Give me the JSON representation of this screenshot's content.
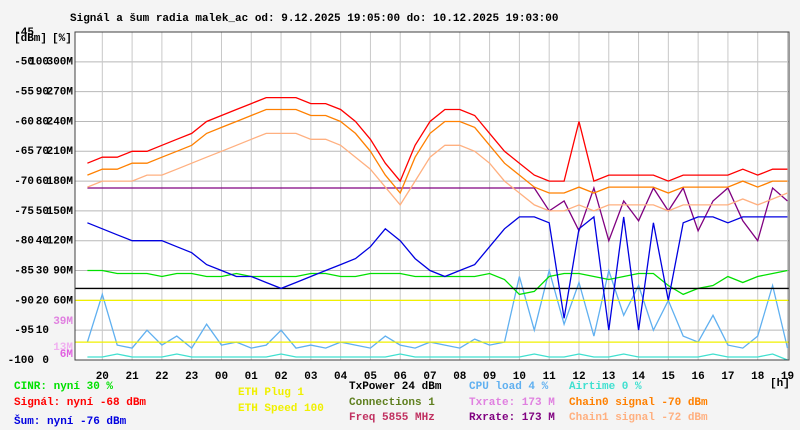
{
  "chart_data": {
    "type": "line",
    "title": "Signál a šum radia malek_ac od: 9.12.2025 19:05:00 do: 10.12.2025 19:03:00",
    "y_label": "[dBm]",
    "y2_label": "[%]",
    "x_label": "[h]",
    "x": [
      19.5,
      20,
      20.5,
      21,
      21.5,
      22,
      22.5,
      23,
      23.5,
      24,
      24.5,
      25,
      25.5,
      26,
      26.5,
      27,
      27.5,
      28,
      28.5,
      29,
      29.5,
      30,
      30.5,
      31,
      31.5,
      32,
      32.5,
      33,
      33.5,
      34,
      34.5,
      35,
      35.5,
      36,
      36.5,
      37,
      37.5,
      38,
      38.5,
      39,
      39.5,
      40,
      40.5,
      41,
      41.5,
      42,
      42.5,
      43
    ],
    "xlim": [
      19.0833,
      43.05
    ],
    "xticks": [
      20,
      21,
      22,
      23,
      {
        "value": 24,
        "label": "00"
      },
      {
        "value": 25,
        "label": "01"
      },
      {
        "value": 26,
        "label": "02"
      },
      {
        "value": 27,
        "label": "03"
      },
      {
        "value": 28,
        "label": "04"
      },
      {
        "value": 29,
        "label": "05"
      },
      {
        "value": 30,
        "label": "06"
      },
      {
        "value": 31,
        "label": "07"
      },
      {
        "value": 32,
        "label": "08"
      },
      {
        "value": 33,
        "label": "09"
      },
      {
        "value": 34,
        "label": "10"
      },
      {
        "value": 35,
        "label": "11"
      },
      {
        "value": 36,
        "label": "12"
      },
      {
        "value": 37,
        "label": "13"
      },
      {
        "value": 38,
        "label": "14"
      },
      {
        "value": 39,
        "label": "15"
      },
      {
        "value": 40,
        "label": "16"
      },
      {
        "value": 41,
        "label": "17"
      },
      {
        "value": 42,
        "label": "18"
      },
      {
        "value": 43,
        "label": "19"
      }
    ],
    "ylim": [
      -100,
      -45
    ],
    "yticks": [
      -45,
      -50,
      -55,
      -60,
      -65,
      -70,
      -75,
      -80,
      -85,
      -90,
      -95,
      -100
    ],
    "y2lim": [
      0,
      110
    ],
    "y2ticks": [
      100,
      90,
      80,
      70,
      60,
      50,
      40,
      30,
      20,
      10,
      0
    ],
    "y3lim": [
      0,
      330
    ],
    "y3ticks": [
      {
        "value": 300,
        "label": "300M"
      },
      {
        "value": 270,
        "label": "270M"
      },
      {
        "value": 240,
        "label": "240M"
      },
      {
        "value": 210,
        "label": "210M"
      },
      {
        "value": 180,
        "label": "180M"
      },
      {
        "value": 150,
        "label": "150M"
      },
      {
        "value": 120,
        "label": "120M"
      },
      {
        "value": 90,
        "label": "90M"
      },
      {
        "value": 60,
        "label": "60M"
      }
    ],
    "rate_marks": [
      {
        "value": 39,
        "label": "39M",
        "color": "#e080e0"
      },
      {
        "value": 13,
        "label": "13M",
        "color": "#f0b0f0"
      },
      {
        "value": 6,
        "label": "6M",
        "color": "#e060e0"
      }
    ],
    "grid": true,
    "series": [
      {
        "name": "CINR: nyní 30 %",
        "color": "#00e000",
        "axis": "y2",
        "values": [
          30,
          30,
          29,
          29,
          29,
          28,
          29,
          29,
          28,
          28,
          29,
          28,
          28,
          28,
          28,
          29,
          29,
          28,
          28,
          29,
          29,
          29,
          28,
          28,
          28,
          28,
          28,
          29,
          27,
          22,
          23,
          28,
          29,
          29,
          28,
          27,
          28,
          29,
          29,
          25,
          22,
          24,
          25,
          28,
          26,
          28,
          29,
          30
        ]
      },
      {
        "name": "Signál: nyní -68 dBm",
        "color": "#ff0000",
        "axis": "y",
        "values": [
          -67,
          -66,
          -66,
          -65,
          -65,
          -64,
          -63,
          -62,
          -60,
          -59,
          -58,
          -57,
          -56,
          -56,
          -56,
          -57,
          -57,
          -58,
          -60,
          -63,
          -67,
          -70,
          -64,
          -60,
          -58,
          -58,
          -59,
          -62,
          -65,
          -67,
          -69,
          -70,
          -70,
          -60,
          -70,
          -69,
          -69,
          -69,
          -69,
          -70,
          -69,
          -69,
          -69,
          -69,
          -68,
          -69,
          -68,
          -68
        ]
      },
      {
        "name": "Šum: nyní -76 dBm",
        "color": "#0000e0",
        "axis": "y",
        "values": [
          -77,
          -78,
          -79,
          -80,
          -80,
          -80,
          -81,
          -82,
          -84,
          -85,
          -86,
          -86,
          -87,
          -88,
          -87,
          -86,
          -85,
          -84,
          -83,
          -81,
          -78,
          -80,
          -83,
          -85,
          -86,
          -85,
          -84,
          -81,
          -78,
          -76,
          -76,
          -77,
          -93,
          -78,
          -76,
          -95,
          -76,
          -95,
          -77,
          -90,
          -77,
          -76,
          -76,
          -77,
          -76,
          -76,
          -76,
          -76
        ]
      },
      {
        "name": "TxPower 24 dBm",
        "color": "#000000",
        "axis": "y2",
        "level": 24
      },
      {
        "name": "CPU load 4 %",
        "color": "#60b0f0",
        "axis": "y2",
        "values": [
          6,
          22,
          5,
          4,
          10,
          5,
          8,
          4,
          12,
          5,
          6,
          4,
          5,
          10,
          4,
          5,
          4,
          6,
          5,
          4,
          8,
          5,
          4,
          6,
          5,
          4,
          7,
          5,
          6,
          28,
          10,
          30,
          12,
          26,
          8,
          30,
          15,
          25,
          10,
          20,
          8,
          6,
          15,
          5,
          4,
          8,
          25,
          4
        ]
      },
      {
        "name": "Rxrate: 173 M",
        "color": "#800080",
        "axis": "y3",
        "values": [
          173,
          173,
          173,
          173,
          173,
          173,
          173,
          173,
          173,
          173,
          173,
          173,
          173,
          173,
          173,
          173,
          173,
          173,
          173,
          173,
          173,
          173,
          173,
          173,
          173,
          173,
          173,
          173,
          173,
          173,
          173,
          150,
          160,
          130,
          173,
          120,
          160,
          140,
          173,
          150,
          173,
          130,
          160,
          173,
          140,
          120,
          173,
          160
        ]
      },
      {
        "name": "Airtime 0 %",
        "color": "#40e0d0",
        "axis": "y2",
        "values": [
          1,
          1,
          2,
          1,
          1,
          1,
          2,
          1,
          1,
          1,
          1,
          1,
          1,
          2,
          1,
          1,
          1,
          1,
          1,
          1,
          1,
          2,
          1,
          1,
          1,
          1,
          1,
          1,
          1,
          1,
          2,
          1,
          1,
          2,
          1,
          1,
          2,
          1,
          1,
          1,
          1,
          1,
          2,
          1,
          1,
          1,
          2,
          0
        ]
      },
      {
        "name": "Chain0 signal -70 dBm",
        "color": "#ff8000",
        "axis": "y",
        "values": [
          -69,
          -68,
          -68,
          -67,
          -67,
          -66,
          -65,
          -64,
          -62,
          -61,
          -60,
          -59,
          -58,
          -58,
          -58,
          -59,
          -59,
          -60,
          -62,
          -65,
          -69,
          -72,
          -66,
          -62,
          -60,
          -60,
          -61,
          -64,
          -67,
          -69,
          -71,
          -72,
          -72,
          -71,
          -72,
          -71,
          -71,
          -71,
          -71,
          -72,
          -71,
          -71,
          -71,
          -71,
          -70,
          -71,
          -70,
          -70
        ]
      },
      {
        "name": "Chain1 signal -72 dBm",
        "color": "#ffb080",
        "axis": "y",
        "values": [
          -71,
          -70,
          -70,
          -70,
          -69,
          -69,
          -68,
          -67,
          -66,
          -65,
          -64,
          -63,
          -62,
          -62,
          -62,
          -63,
          -63,
          -64,
          -66,
          -68,
          -71,
          -74,
          -70,
          -66,
          -64,
          -64,
          -65,
          -67,
          -70,
          -72,
          -74,
          -75,
          -75,
          -74,
          -75,
          -74,
          -74,
          -74,
          -74,
          -75,
          -74,
          -74,
          -74,
          -74,
          -73,
          -74,
          -73,
          -72
        ]
      },
      {
        "name": "ETH Plug 1",
        "color": "#f0f000",
        "axis": "y",
        "level": -90
      },
      {
        "name": "ETH Speed 100",
        "color": "#f0f000",
        "axis": "y",
        "level": -97
      }
    ],
    "legend_extra": [
      {
        "name": "Connections 1",
        "color": "#608020"
      },
      {
        "name": "Freq 5855 MHz",
        "color": "#c03060"
      },
      {
        "name": "Txrate: 173 M",
        "color": "#e080e0"
      }
    ]
  }
}
